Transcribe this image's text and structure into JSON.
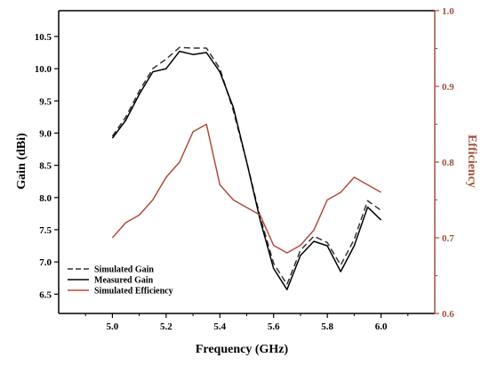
{
  "chart_data": {
    "type": "line",
    "xlabel": "Frequency (GHz)",
    "ylabel": "Gain (dBi)",
    "y2label": "Efficiency",
    "xlim": [
      4.8,
      6.2
    ],
    "ylim": [
      6.2,
      10.9
    ],
    "y2lim": [
      0.6,
      1.0
    ],
    "x_ticks": [
      "5.0",
      "5.2",
      "5.4",
      "5.6",
      "5.8",
      "6.0"
    ],
    "x_tick_values": [
      5.0,
      5.2,
      5.4,
      5.6,
      5.8,
      6.0
    ],
    "y_ticks": [
      "6.5",
      "7.0",
      "7.5",
      "8.0",
      "8.5",
      "9.0",
      "9.5",
      "10.0",
      "10.5"
    ],
    "y_tick_values": [
      6.5,
      7.0,
      7.5,
      8.0,
      8.5,
      9.0,
      9.5,
      10.0,
      10.5
    ],
    "y2_ticks": [
      "0.6",
      "0.7",
      "0.8",
      "0.9",
      "1.0"
    ],
    "y2_tick_values": [
      0.6,
      0.7,
      0.8,
      0.9,
      1.0
    ],
    "x": [
      5.0,
      5.05,
      5.1,
      5.15,
      5.2,
      5.25,
      5.3,
      5.35,
      5.4,
      5.45,
      5.5,
      5.55,
      5.6,
      5.65,
      5.7,
      5.75,
      5.8,
      5.85,
      5.9,
      5.95,
      6.0
    ],
    "grid": false,
    "legend_position": "bottom-left",
    "series": [
      {
        "name": "Simulated Gain",
        "axis": "left",
        "color": "#333333",
        "dash": "dashed",
        "values": [
          8.95,
          9.25,
          9.65,
          10.0,
          10.15,
          10.33,
          10.32,
          10.32,
          10.0,
          9.35,
          8.55,
          7.7,
          6.98,
          6.65,
          7.18,
          7.4,
          7.3,
          6.95,
          7.35,
          7.95,
          7.8
        ]
      },
      {
        "name": "Measured Gain",
        "axis": "left",
        "color": "#000000",
        "dash": "solid",
        "values": [
          8.92,
          9.2,
          9.6,
          9.95,
          10.0,
          10.27,
          10.22,
          10.25,
          9.95,
          9.4,
          8.55,
          7.65,
          6.9,
          6.57,
          7.1,
          7.32,
          7.25,
          6.85,
          7.25,
          7.85,
          7.65
        ]
      },
      {
        "name": "Simulated Efficiency",
        "axis": "right",
        "color": "#b04a3a",
        "dash": "solid",
        "values": [
          0.7,
          0.72,
          0.73,
          0.75,
          0.78,
          0.8,
          0.84,
          0.85,
          0.77,
          0.75,
          0.74,
          0.73,
          0.69,
          0.68,
          0.69,
          0.71,
          0.75,
          0.76,
          0.78,
          0.77,
          0.76
        ]
      }
    ],
    "colors": {
      "left_axis": "#000000",
      "right_axis": "#a0503c"
    }
  }
}
